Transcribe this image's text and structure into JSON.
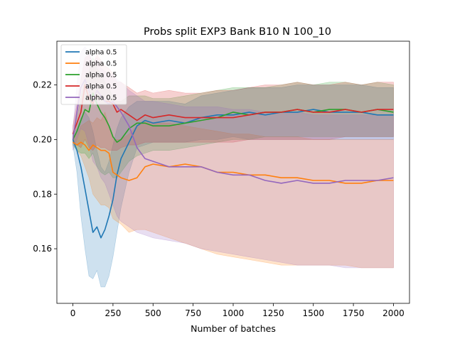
{
  "chart_data": {
    "type": "line",
    "title": "Probs split EXP3 Bank B10 N 100_10",
    "xlabel": "Number of batches",
    "ylabel": "",
    "xlim": [
      -100,
      2100
    ],
    "ylim": [
      0.14,
      0.236
    ],
    "xticks": [
      0,
      250,
      500,
      750,
      1000,
      1250,
      1500,
      1750,
      2000
    ],
    "yticks": [
      0.16,
      0.18,
      0.2,
      0.22
    ],
    "ytick_labels": [
      "0.16",
      "0.18",
      "0.20",
      "0.22"
    ],
    "grid": false,
    "legend": {
      "placement": "top-left",
      "entries": [
        "alpha 0.5",
        "alpha 0.5",
        "alpha 0.5",
        "alpha 0.5",
        "alpha 0.5"
      ]
    },
    "series": [
      {
        "name": "alpha 0.5",
        "color": "#1f77b4",
        "x": [
          0,
          25,
          50,
          75,
          100,
          125,
          150,
          175,
          200,
          225,
          250,
          275,
          300,
          350,
          400,
          450,
          500,
          600,
          700,
          800,
          900,
          1000,
          1100,
          1200,
          1300,
          1400,
          1500,
          1600,
          1700,
          1800,
          1900,
          2000
        ],
        "y": [
          0.2,
          0.196,
          0.19,
          0.182,
          0.174,
          0.166,
          0.168,
          0.164,
          0.167,
          0.172,
          0.178,
          0.187,
          0.193,
          0.199,
          0.205,
          0.207,
          0.206,
          0.207,
          0.206,
          0.208,
          0.209,
          0.209,
          0.21,
          0.209,
          0.21,
          0.21,
          0.211,
          0.21,
          0.21,
          0.21,
          0.209,
          0.209
        ],
        "lower": [
          0.198,
          0.188,
          0.172,
          0.16,
          0.15,
          0.149,
          0.152,
          0.146,
          0.146,
          0.15,
          0.157,
          0.166,
          0.175,
          0.188,
          0.197,
          0.198,
          0.199,
          0.199,
          0.199,
          0.2,
          0.2,
          0.201,
          0.2,
          0.2,
          0.2,
          0.2,
          0.2,
          0.2,
          0.2,
          0.2,
          0.2,
          0.2
        ],
        "upper": [
          0.202,
          0.204,
          0.208,
          0.21,
          0.208,
          0.203,
          0.196,
          0.19,
          0.188,
          0.192,
          0.198,
          0.204,
          0.208,
          0.212,
          0.214,
          0.214,
          0.214,
          0.214,
          0.213,
          0.216,
          0.217,
          0.218,
          0.219,
          0.219,
          0.219,
          0.22,
          0.22,
          0.22,
          0.22,
          0.22,
          0.219,
          0.219
        ]
      },
      {
        "name": "alpha 0.5",
        "color": "#ff7f0e",
        "x": [
          0,
          25,
          50,
          75,
          100,
          125,
          150,
          175,
          200,
          225,
          250,
          275,
          300,
          350,
          400,
          450,
          500,
          600,
          700,
          800,
          900,
          1000,
          1100,
          1200,
          1300,
          1400,
          1500,
          1600,
          1700,
          1800,
          1900,
          2000
        ],
        "y": [
          0.199,
          0.198,
          0.199,
          0.198,
          0.196,
          0.198,
          0.197,
          0.196,
          0.196,
          0.195,
          0.188,
          0.187,
          0.186,
          0.185,
          0.186,
          0.19,
          0.191,
          0.19,
          0.191,
          0.19,
          0.188,
          0.188,
          0.187,
          0.187,
          0.186,
          0.186,
          0.185,
          0.185,
          0.184,
          0.184,
          0.185,
          0.185
        ],
        "lower": [
          0.199,
          0.196,
          0.194,
          0.19,
          0.186,
          0.18,
          0.178,
          0.176,
          0.176,
          0.175,
          0.171,
          0.17,
          0.169,
          0.166,
          0.167,
          0.167,
          0.166,
          0.164,
          0.162,
          0.16,
          0.158,
          0.157,
          0.156,
          0.155,
          0.154,
          0.154,
          0.154,
          0.154,
          0.154,
          0.153,
          0.153,
          0.153
        ],
        "upper": [
          0.201,
          0.202,
          0.205,
          0.206,
          0.207,
          0.206,
          0.208,
          0.207,
          0.21,
          0.205,
          0.2,
          0.2,
          0.2,
          0.202,
          0.205,
          0.207,
          0.206,
          0.206,
          0.205,
          0.204,
          0.203,
          0.202,
          0.202,
          0.201,
          0.201,
          0.201,
          0.2,
          0.2,
          0.2,
          0.2,
          0.2,
          0.2
        ]
      },
      {
        "name": "alpha 0.5",
        "color": "#2ca02c",
        "x": [
          0,
          25,
          50,
          75,
          100,
          125,
          150,
          175,
          200,
          225,
          250,
          275,
          300,
          350,
          400,
          450,
          500,
          600,
          700,
          800,
          900,
          1000,
          1100,
          1200,
          1300,
          1400,
          1500,
          1600,
          1700,
          1800,
          1900,
          2000
        ],
        "y": [
          0.2,
          0.203,
          0.207,
          0.211,
          0.21,
          0.217,
          0.213,
          0.21,
          0.208,
          0.205,
          0.201,
          0.199,
          0.2,
          0.204,
          0.206,
          0.206,
          0.205,
          0.205,
          0.206,
          0.207,
          0.208,
          0.21,
          0.209,
          0.21,
          0.21,
          0.211,
          0.21,
          0.211,
          0.211,
          0.21,
          0.211,
          0.21
        ],
        "lower": [
          0.198,
          0.196,
          0.195,
          0.195,
          0.193,
          0.195,
          0.19,
          0.188,
          0.187,
          0.188,
          0.186,
          0.186,
          0.188,
          0.192,
          0.194,
          0.195,
          0.196,
          0.196,
          0.197,
          0.198,
          0.199,
          0.2,
          0.2,
          0.201,
          0.201,
          0.201,
          0.201,
          0.201,
          0.201,
          0.201,
          0.201,
          0.201
        ],
        "upper": [
          0.202,
          0.208,
          0.215,
          0.222,
          0.225,
          0.23,
          0.226,
          0.224,
          0.221,
          0.219,
          0.215,
          0.214,
          0.214,
          0.216,
          0.216,
          0.216,
          0.215,
          0.215,
          0.216,
          0.217,
          0.218,
          0.219,
          0.219,
          0.219,
          0.22,
          0.221,
          0.22,
          0.221,
          0.221,
          0.22,
          0.221,
          0.22
        ]
      },
      {
        "name": "alpha 0.5",
        "color": "#d62728",
        "x": [
          0,
          25,
          50,
          75,
          100,
          125,
          150,
          175,
          200,
          225,
          250,
          275,
          300,
          350,
          400,
          450,
          500,
          600,
          700,
          800,
          900,
          1000,
          1100,
          1200,
          1300,
          1400,
          1500,
          1600,
          1700,
          1800,
          1900,
          2000
        ],
        "y": [
          0.202,
          0.206,
          0.21,
          0.22,
          0.215,
          0.213,
          0.218,
          0.216,
          0.214,
          0.214,
          0.213,
          0.21,
          0.211,
          0.209,
          0.207,
          0.209,
          0.208,
          0.209,
          0.208,
          0.208,
          0.208,
          0.208,
          0.209,
          0.21,
          0.21,
          0.211,
          0.21,
          0.21,
          0.211,
          0.21,
          0.211,
          0.211
        ],
        "lower": [
          0.199,
          0.198,
          0.197,
          0.2,
          0.197,
          0.196,
          0.198,
          0.197,
          0.197,
          0.196,
          0.196,
          0.196,
          0.197,
          0.198,
          0.198,
          0.199,
          0.199,
          0.199,
          0.199,
          0.199,
          0.199,
          0.199,
          0.2,
          0.2,
          0.2,
          0.2,
          0.2,
          0.2,
          0.201,
          0.201,
          0.201,
          0.201
        ],
        "upper": [
          0.205,
          0.213,
          0.222,
          0.23,
          0.231,
          0.228,
          0.231,
          0.229,
          0.227,
          0.226,
          0.224,
          0.221,
          0.221,
          0.219,
          0.217,
          0.218,
          0.217,
          0.218,
          0.217,
          0.217,
          0.218,
          0.218,
          0.219,
          0.22,
          0.22,
          0.221,
          0.22,
          0.22,
          0.221,
          0.22,
          0.221,
          0.221
        ]
      },
      {
        "name": "alpha 0.5",
        "color": "#9467bd",
        "x": [
          0,
          25,
          50,
          75,
          100,
          125,
          150,
          175,
          200,
          225,
          250,
          275,
          300,
          350,
          400,
          450,
          500,
          600,
          700,
          800,
          900,
          1000,
          1100,
          1200,
          1300,
          1400,
          1500,
          1600,
          1700,
          1800,
          1900,
          2000
        ],
        "y": [
          0.2,
          0.21,
          0.219,
          0.222,
          0.218,
          0.214,
          0.218,
          0.216,
          0.214,
          0.213,
          0.214,
          0.212,
          0.21,
          0.205,
          0.197,
          0.193,
          0.192,
          0.19,
          0.19,
          0.19,
          0.188,
          0.187,
          0.187,
          0.185,
          0.184,
          0.185,
          0.184,
          0.184,
          0.185,
          0.185,
          0.185,
          0.186
        ],
        "lower": [
          0.196,
          0.2,
          0.204,
          0.203,
          0.198,
          0.192,
          0.19,
          0.186,
          0.184,
          0.18,
          0.176,
          0.172,
          0.17,
          0.168,
          0.166,
          0.165,
          0.164,
          0.163,
          0.162,
          0.16,
          0.159,
          0.158,
          0.157,
          0.156,
          0.155,
          0.154,
          0.154,
          0.154,
          0.153,
          0.153,
          0.153,
          0.153
        ],
        "upper": [
          0.204,
          0.22,
          0.232,
          0.234,
          0.232,
          0.228,
          0.23,
          0.226,
          0.225,
          0.224,
          0.224,
          0.222,
          0.221,
          0.218,
          0.216,
          0.214,
          0.214,
          0.213,
          0.212,
          0.212,
          0.212,
          0.211,
          0.211,
          0.21,
          0.21,
          0.21,
          0.209,
          0.209,
          0.209,
          0.209,
          0.209,
          0.209
        ]
      }
    ]
  }
}
